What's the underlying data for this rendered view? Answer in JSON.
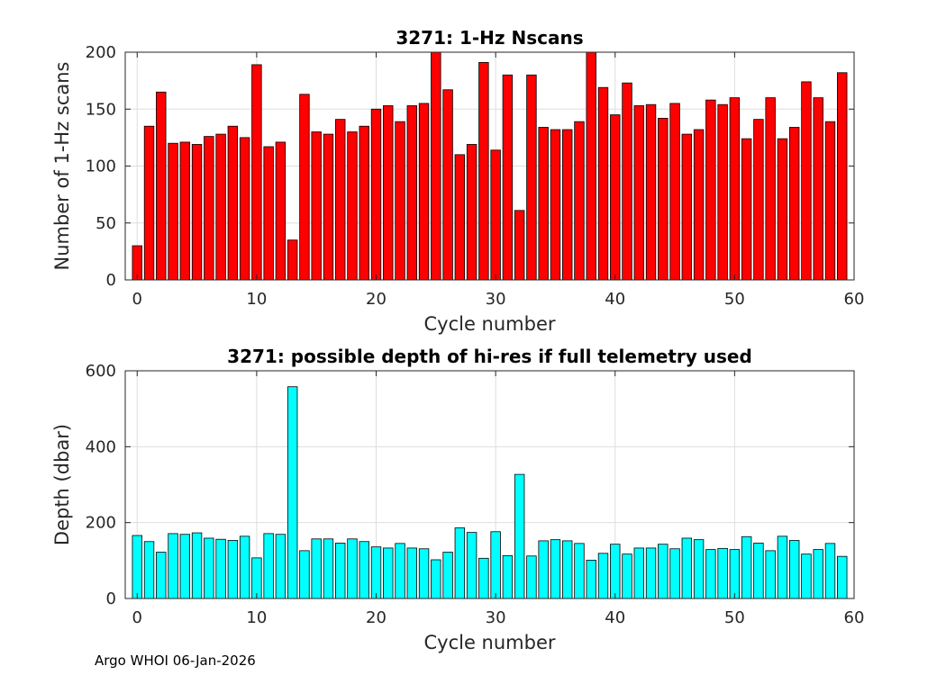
{
  "chart_data": [
    {
      "type": "bar",
      "title": "3271: 1-Hz Nscans",
      "xlabel": "Cycle number",
      "ylabel": "Number of 1-Hz scans",
      "xlim": [
        -1,
        60
      ],
      "ylim": [
        0,
        200
      ],
      "xticks": [
        "0",
        "10",
        "20",
        "30",
        "40",
        "50",
        "60"
      ],
      "yticks": [
        "0",
        "50",
        "100",
        "150",
        "200"
      ],
      "grid": true,
      "bar_color": "#ff0000",
      "x": [
        0,
        1,
        2,
        3,
        4,
        5,
        6,
        7,
        8,
        9,
        10,
        11,
        12,
        13,
        14,
        15,
        16,
        17,
        18,
        19,
        20,
        21,
        22,
        23,
        24,
        25,
        26,
        27,
        28,
        29,
        30,
        31,
        32,
        33,
        34,
        35,
        36,
        37,
        38,
        39,
        40,
        41,
        42,
        43,
        44,
        45,
        46,
        47,
        48,
        49,
        50,
        51,
        52,
        53,
        54,
        55,
        56,
        57,
        58,
        59
      ],
      "values": [
        30,
        135,
        165,
        120,
        121,
        119,
        126,
        128,
        135,
        125,
        189,
        117,
        121,
        35,
        163,
        130,
        128,
        141,
        130,
        135,
        150,
        153,
        139,
        153,
        155,
        200,
        167,
        110,
        119,
        191,
        114,
        180,
        61,
        180,
        134,
        132,
        132,
        139,
        200,
        169,
        145,
        173,
        153,
        154,
        142,
        155,
        128,
        132,
        158,
        154,
        160,
        124,
        141,
        160,
        124,
        134,
        174,
        160,
        139,
        182
      ]
    },
    {
      "type": "bar",
      "title": "3271: possible depth of hi-res if full telemetry used",
      "xlabel": "Cycle number",
      "ylabel": "Depth (dbar)",
      "xlim": [
        -1,
        60
      ],
      "ylim": [
        0,
        600
      ],
      "xticks": [
        "0",
        "10",
        "20",
        "30",
        "40",
        "50",
        "60"
      ],
      "yticks": [
        "0",
        "200",
        "400",
        "600"
      ],
      "grid": true,
      "bar_color": "#00ffff",
      "x": [
        0,
        1,
        2,
        3,
        4,
        5,
        6,
        7,
        8,
        9,
        10,
        11,
        12,
        13,
        14,
        15,
        16,
        17,
        18,
        19,
        20,
        21,
        22,
        23,
        24,
        25,
        26,
        27,
        28,
        29,
        30,
        31,
        32,
        33,
        34,
        35,
        36,
        37,
        38,
        39,
        40,
        41,
        42,
        43,
        44,
        45,
        46,
        47,
        48,
        49,
        50,
        51,
        52,
        53,
        54,
        55,
        56,
        57,
        58,
        59
      ],
      "values": [
        166,
        150,
        122,
        171,
        169,
        173,
        159,
        156,
        153,
        164,
        107,
        171,
        169,
        558,
        126,
        157,
        157,
        146,
        157,
        150,
        136,
        133,
        145,
        133,
        131,
        102,
        122,
        186,
        174,
        106,
        176,
        113,
        327,
        112,
        152,
        155,
        152,
        145,
        101,
        119,
        143,
        117,
        133,
        133,
        143,
        131,
        159,
        155,
        129,
        132,
        129,
        163,
        146,
        126,
        164,
        153,
        117,
        129,
        145,
        111
      ]
    }
  ],
  "footer": "Argo WHOI 06-Jan-2026"
}
